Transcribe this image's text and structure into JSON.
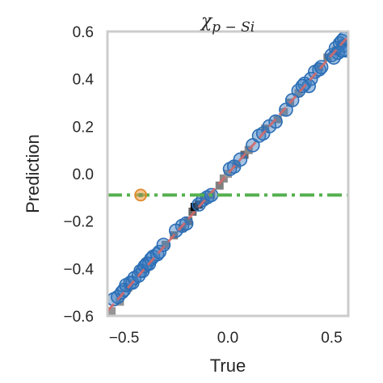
{
  "chart_data": {
    "type": "scatter",
    "title": "χ",
    "title_subscript": "p − Si",
    "xlabel": "True",
    "ylabel": "Prediction",
    "xlim": [
      -0.58,
      0.58
    ],
    "ylim": [
      -0.6,
      0.6
    ],
    "xticks": [
      -0.5,
      0.0,
      0.5
    ],
    "xtick_labels": [
      "−0.5",
      "0.0",
      "0.5"
    ],
    "yticks": [
      -0.6,
      -0.4,
      -0.2,
      0.0,
      0.2,
      0.4,
      0.6
    ],
    "ytick_labels": [
      "−0.6",
      "−0.4",
      "−0.2",
      "0.0",
      "0.2",
      "0.4",
      "0.6"
    ],
    "grid": false,
    "colors": {
      "points": "#3a7bbf",
      "points_edge": "#2a6db5",
      "highlight": "#f0a04b",
      "reference_line": "#d36a6a",
      "baseline": "#55b04f",
      "frame": "#cccccc",
      "density": "#a8a8a8"
    },
    "reference_line": {
      "from": [
        -0.58,
        -0.58
      ],
      "to": [
        0.58,
        0.58
      ]
    },
    "baseline": {
      "y": -0.09,
      "style": "dash-dot"
    },
    "highlight_point": {
      "x": -0.42,
      "y": -0.09
    },
    "series": [
      {
        "points": [
          [
            -0.55,
            -0.53
          ],
          [
            -0.53,
            -0.52
          ],
          [
            -0.51,
            -0.5
          ],
          [
            -0.5,
            -0.49
          ],
          [
            -0.49,
            -0.47
          ],
          [
            -0.47,
            -0.46
          ],
          [
            -0.46,
            -0.46
          ],
          [
            -0.45,
            -0.44
          ],
          [
            -0.43,
            -0.43
          ],
          [
            -0.42,
            -0.41
          ],
          [
            -0.41,
            -0.41
          ],
          [
            -0.4,
            -0.39
          ],
          [
            -0.39,
            -0.38
          ],
          [
            -0.38,
            -0.38
          ],
          [
            -0.37,
            -0.36
          ],
          [
            -0.36,
            -0.35
          ],
          [
            -0.34,
            -0.34
          ],
          [
            -0.33,
            -0.33
          ],
          [
            -0.31,
            -0.3
          ],
          [
            -0.22,
            -0.22
          ],
          [
            -0.2,
            -0.21
          ],
          [
            -0.14,
            -0.13
          ],
          [
            -0.12,
            -0.11
          ],
          [
            -0.1,
            -0.1
          ],
          [
            -0.08,
            -0.09
          ],
          [
            0.01,
            0.02
          ],
          [
            0.03,
            0.03
          ],
          [
            0.06,
            0.06
          ],
          [
            0.12,
            0.12
          ],
          [
            0.15,
            0.16
          ],
          [
            0.17,
            0.17
          ],
          [
            0.2,
            0.2
          ],
          [
            0.23,
            0.22
          ],
          [
            0.28,
            0.27
          ],
          [
            0.31,
            0.31
          ],
          [
            0.34,
            0.35
          ],
          [
            0.37,
            0.38
          ],
          [
            0.4,
            0.4
          ],
          [
            0.42,
            0.43
          ],
          [
            0.44,
            0.44
          ],
          [
            0.5,
            0.5
          ],
          [
            0.52,
            0.53
          ],
          [
            0.54,
            0.55
          ],
          [
            0.55,
            0.56
          ],
          [
            0.56,
            0.54
          ],
          [
            0.57,
            0.52
          ],
          [
            0.53,
            0.51
          ],
          [
            0.51,
            0.49
          ],
          [
            0.56,
            0.57
          ],
          [
            0.55,
            0.52
          ],
          [
            0.45,
            0.45
          ],
          [
            0.39,
            0.37
          ],
          [
            0.36,
            0.37
          ],
          [
            -0.25,
            -0.24
          ]
        ]
      }
    ],
    "density_cells": [
      [
        -0.56,
        -0.58,
        0.35
      ],
      [
        -0.52,
        -0.54,
        0.35
      ],
      [
        -0.48,
        -0.48,
        0.45
      ],
      [
        -0.4,
        -0.4,
        0.35
      ],
      [
        -0.3,
        -0.3,
        0.4
      ],
      [
        -0.26,
        -0.26,
        0.45
      ],
      [
        -0.22,
        -0.23,
        0.45
      ],
      [
        -0.19,
        -0.2,
        0.5
      ],
      [
        -0.17,
        -0.16,
        0.55
      ],
      [
        -0.16,
        -0.14,
        1.0
      ],
      [
        -0.14,
        -0.13,
        0.8
      ],
      [
        -0.11,
        -0.11,
        0.5
      ],
      [
        -0.08,
        -0.09,
        0.45
      ],
      [
        -0.04,
        -0.05,
        0.45
      ],
      [
        -0.02,
        -0.02,
        0.4
      ],
      [
        0.0,
        0.0,
        0.35
      ],
      [
        0.04,
        0.04,
        0.4
      ],
      [
        0.08,
        0.08,
        0.55
      ],
      [
        0.1,
        0.1,
        0.4
      ],
      [
        0.18,
        0.19,
        0.45
      ],
      [
        0.24,
        0.23,
        0.4
      ],
      [
        0.27,
        0.26,
        0.35
      ],
      [
        0.3,
        0.3,
        0.4
      ],
      [
        0.34,
        0.34,
        0.35
      ],
      [
        0.44,
        0.45,
        0.4
      ],
      [
        0.48,
        0.49,
        0.45
      ],
      [
        0.52,
        0.52,
        0.4
      ],
      [
        0.56,
        0.55,
        0.35
      ]
    ]
  }
}
